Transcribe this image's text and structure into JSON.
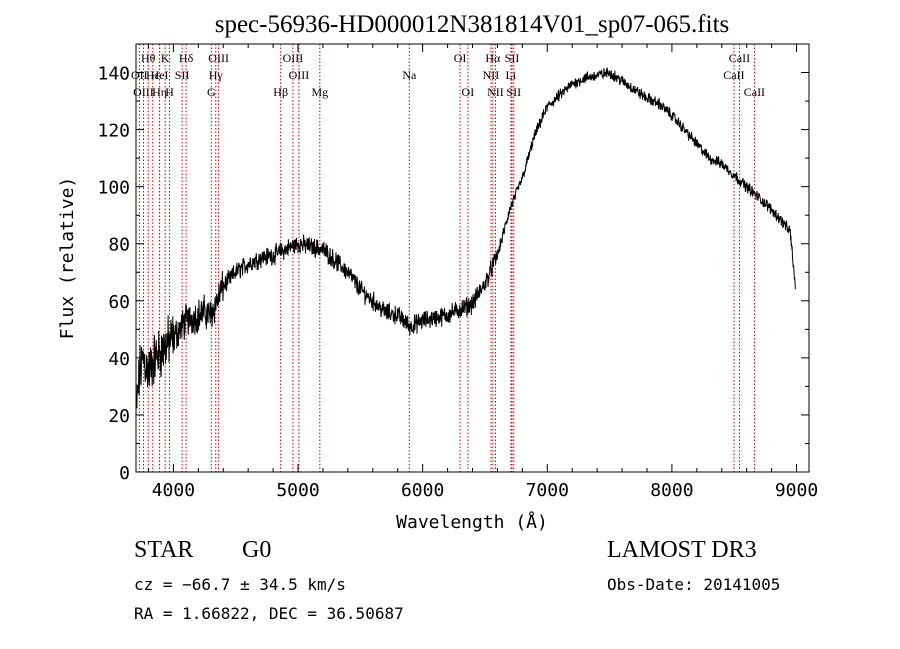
{
  "chart_data": {
    "type": "line",
    "title": "spec-56936-HD000012N381814V01_sp07-065.fits",
    "xlabel": "Wavelength (Å)",
    "ylabel": "Flux (relative)",
    "xlim": [
      3700,
      9100
    ],
    "ylim": [
      0,
      150
    ],
    "xticks": [
      4000,
      5000,
      6000,
      7000,
      8000,
      9000
    ],
    "yticks": [
      0,
      20,
      40,
      60,
      80,
      100,
      120,
      140
    ],
    "grid": false,
    "series": [
      {
        "name": "spectrum",
        "color": "#000000",
        "x": [
          3700,
          3730,
          3760,
          3800,
          3850,
          3900,
          3950,
          4000,
          4050,
          4100,
          4150,
          4200,
          4250,
          4300,
          4350,
          4400,
          4500,
          4600,
          4700,
          4800,
          4900,
          5000,
          5100,
          5200,
          5300,
          5400,
          5500,
          5600,
          5700,
          5800,
          5900,
          6000,
          6100,
          6200,
          6300,
          6400,
          6500,
          6560,
          6600,
          6700,
          6800,
          6900,
          7000,
          7100,
          7200,
          7300,
          7400,
          7500,
          7600,
          7700,
          7800,
          7900,
          8000,
          8100,
          8200,
          8300,
          8400,
          8500,
          8600,
          8700,
          8800,
          8900,
          8950,
          8990
        ],
        "y": [
          20,
          35,
          40,
          35,
          40,
          42,
          45,
          47,
          50,
          53,
          54,
          55,
          56,
          55,
          60,
          65,
          70,
          73,
          75,
          76,
          78,
          80,
          79,
          78,
          74,
          70,
          64,
          60,
          56,
          55,
          51,
          53,
          54,
          55,
          57,
          59,
          66,
          72,
          76,
          92,
          103,
          118,
          128,
          132,
          136,
          138,
          139,
          140,
          137,
          134,
          131,
          129,
          125,
          120,
          115,
          110,
          108,
          104,
          100,
          96,
          92,
          87,
          84,
          65
        ]
      }
    ]
  },
  "line_marker_color": "#cc0000",
  "line_markers": [
    {
      "label": "Hθ",
      "wavelength": 3798,
      "row": 1
    },
    {
      "label": "OII",
      "wavelength": 3727,
      "row": 2
    },
    {
      "label": "OIII",
      "wavelength": 3760,
      "row": 3
    },
    {
      "label": "Hε",
      "wavelength": 3835,
      "row": 2
    },
    {
      "label": "Hη",
      "wavelength": 3889,
      "row": 3
    },
    {
      "label": "K",
      "wavelength": 3934,
      "row": 1
    },
    {
      "label": "HeI",
      "wavelength": 3889,
      "row": 2
    },
    {
      "label": "H",
      "wavelength": 3969,
      "row": 3
    },
    {
      "label": "Hδ",
      "wavelength": 4102,
      "row": 1
    },
    {
      "label": "SII",
      "wavelength": 4070,
      "row": 2
    },
    {
      "label": "OIII",
      "wavelength": 4363,
      "row": 1
    },
    {
      "label": "Hγ",
      "wavelength": 4340,
      "row": 2
    },
    {
      "label": "G",
      "wavelength": 4304,
      "row": 3
    },
    {
      "label": "OIII",
      "wavelength": 4959,
      "row": 1
    },
    {
      "label": "OIII",
      "wavelength": 5007,
      "row": 2
    },
    {
      "label": "Hβ",
      "wavelength": 4861,
      "row": 3
    },
    {
      "label": "Mg",
      "wavelength": 5175,
      "row": 3
    },
    {
      "label": "Na",
      "wavelength": 5893,
      "row": 2
    },
    {
      "label": "OI",
      "wavelength": 6300,
      "row": 1
    },
    {
      "label": "OI",
      "wavelength": 6363,
      "row": 3
    },
    {
      "label": "Hα",
      "wavelength": 6563,
      "row": 1
    },
    {
      "label": "NII",
      "wavelength": 6548,
      "row": 2
    },
    {
      "label": "NII",
      "wavelength": 6584,
      "row": 3
    },
    {
      "label": "SII",
      "wavelength": 6717,
      "row": 1
    },
    {
      "label": "Li",
      "wavelength": 6708,
      "row": 2
    },
    {
      "label": "SII",
      "wavelength": 6731,
      "row": 3
    },
    {
      "label": "CaII",
      "wavelength": 8542,
      "row": 1
    },
    {
      "label": "CaII",
      "wavelength": 8498,
      "row": 2
    },
    {
      "label": "CaII",
      "wavelength": 8662,
      "row": 3
    }
  ],
  "info": {
    "class": "STAR",
    "subclass": "G0",
    "survey": "LAMOST DR3",
    "cz": "cz = −66.7 ± 34.5 km/s",
    "obs_date": "Obs-Date: 20141005",
    "radec": "RA =   1.66822, DEC =  36.50687"
  }
}
